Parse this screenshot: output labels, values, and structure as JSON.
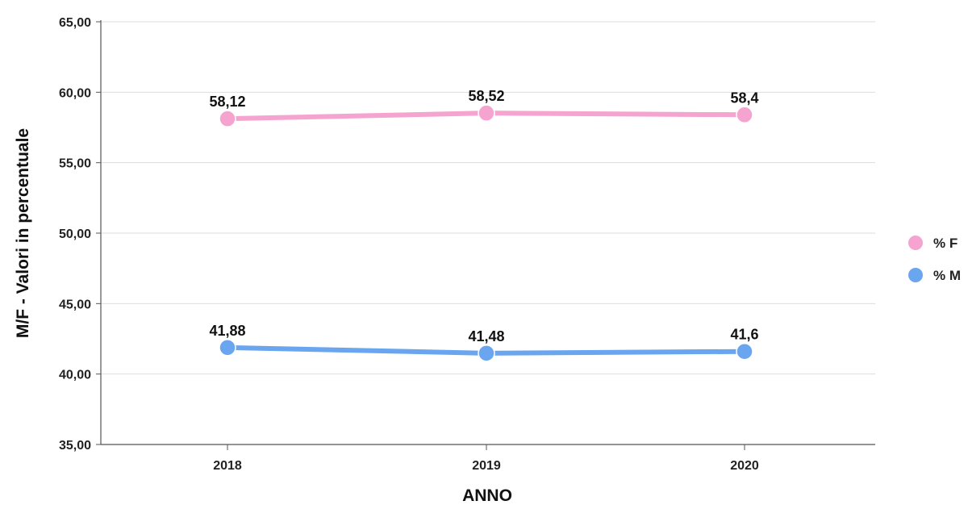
{
  "chart_data": {
    "type": "line",
    "xlabel": "ANNO",
    "ylabel": "M/F - Valori in percentuale",
    "categories": [
      "2018",
      "2019",
      "2020"
    ],
    "ylim": [
      35,
      65
    ],
    "yticks": [
      "35,00",
      "40,00",
      "45,00",
      "50,00",
      "55,00",
      "60,00",
      "65,00"
    ],
    "ytick_values": [
      35,
      40,
      45,
      50,
      55,
      60,
      65
    ],
    "grid": "horizontal",
    "legend_position": "right",
    "series": [
      {
        "name": "% F",
        "values": [
          58.12,
          58.52,
          58.4
        ],
        "labels": [
          "58,12",
          "58,52",
          "58,4"
        ],
        "color": "#f5a3cf"
      },
      {
        "name": "% M",
        "values": [
          41.88,
          41.48,
          41.6
        ],
        "labels": [
          "41,88",
          "41,48",
          "41,6"
        ],
        "color": "#6aa5ef"
      }
    ]
  }
}
